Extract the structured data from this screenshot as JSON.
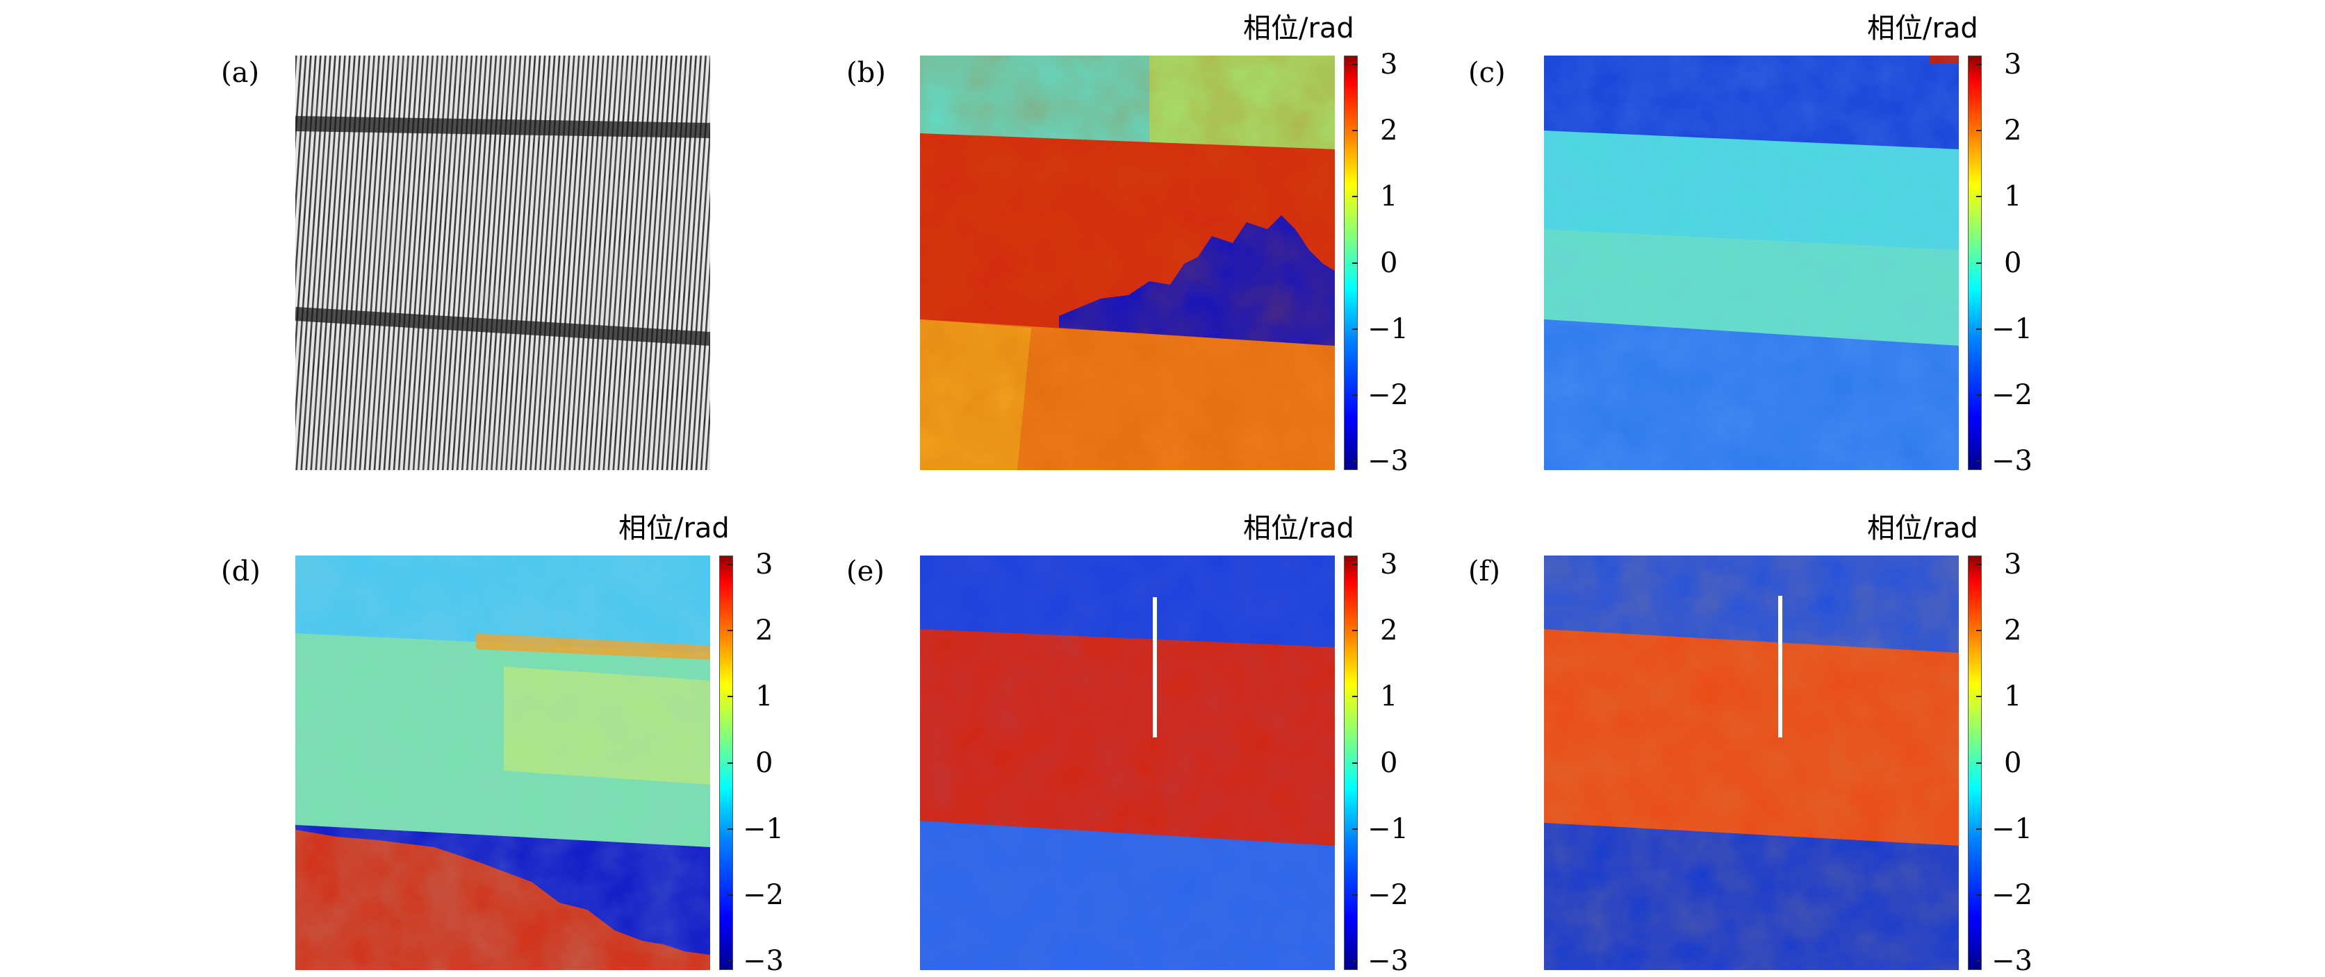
{
  "chart_data": [
    {
      "panel": "(a)",
      "type": "heatmap",
      "colormap": "gray"
    },
    {
      "panel": "(b)",
      "type": "heatmap",
      "colormap": "jet",
      "colorbar_label": "相位/rad",
      "clim": [
        -3.14,
        3.14
      ],
      "ticks": [
        "3",
        "2",
        "1",
        "0",
        "−1",
        "−2",
        "−3"
      ]
    },
    {
      "panel": "(c)",
      "type": "heatmap",
      "colormap": "jet",
      "colorbar_label": "相位/rad",
      "clim": [
        -3.14,
        3.14
      ],
      "ticks": [
        "3",
        "2",
        "1",
        "0",
        "−1",
        "−2",
        "−3"
      ]
    },
    {
      "panel": "(d)",
      "type": "heatmap",
      "colormap": "jet",
      "colorbar_label": "相位/rad",
      "clim": [
        -3.14,
        3.14
      ],
      "ticks": [
        "3",
        "2",
        "1",
        "0",
        "−1",
        "−2",
        "−3"
      ]
    },
    {
      "panel": "(e)",
      "type": "heatmap",
      "colormap": "jet",
      "colorbar_label": "相位/rad",
      "clim": [
        -3.14,
        3.14
      ],
      "ticks": [
        "3",
        "2",
        "1",
        "0",
        "−1",
        "−2",
        "−3"
      ]
    },
    {
      "panel": "(f)",
      "type": "heatmap",
      "colormap": "jet",
      "colorbar_label": "相位/rad",
      "clim": [
        -3.14,
        3.14
      ],
      "ticks": [
        "3",
        "2",
        "1",
        "0",
        "−1",
        "−2",
        "−3"
      ]
    }
  ],
  "colors": {
    "dark_red": "#c81400",
    "red": "#e83a10",
    "orange_yellow": "#f0a020",
    "cyan": "#40d8e8",
    "light_green": "#80e0b0",
    "blue": "#1a4ce0",
    "dark_blue": "#0b10c8"
  }
}
